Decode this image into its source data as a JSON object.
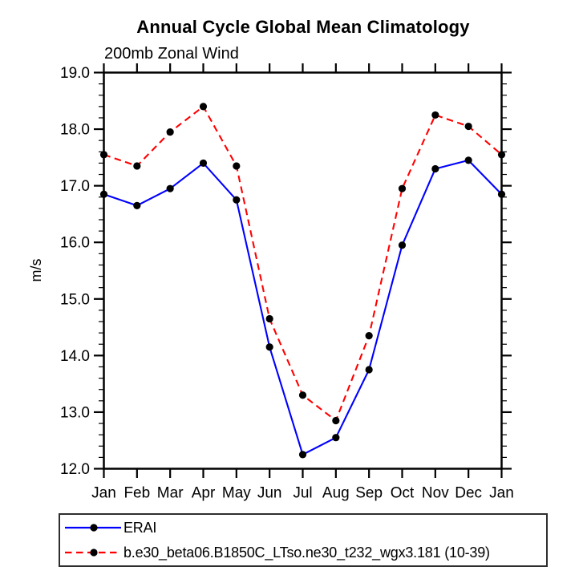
{
  "window": {
    "background": "#ffffff"
  },
  "chart_data": {
    "type": "line",
    "title": "Annual Cycle Global Mean Climatology",
    "subtitle": "200mb Zonal Wind",
    "xlabel": "",
    "ylabel": "m/s",
    "ylim": [
      12.0,
      19.0
    ],
    "ytick_interval": 1.0,
    "yminor_tick_interval": 0.2,
    "ytick_labels": [
      "12.0",
      "13.0",
      "14.0",
      "15.0",
      "16.0",
      "17.0",
      "18.0",
      "19.0"
    ],
    "categories": [
      "Jan",
      "Feb",
      "Mar",
      "Apr",
      "May",
      "Jun",
      "Jul",
      "Aug",
      "Sep",
      "Oct",
      "Nov",
      "Dec",
      "Jan"
    ],
    "grid": false,
    "frame_style": "closed-box-outward-ticks",
    "legend_position": "bottom-left-box",
    "series": [
      {
        "name": "ERAI",
        "line_color": "#0000ff",
        "line_style": "solid",
        "marker": "filled-circle",
        "marker_color": "#000000",
        "values": [
          16.85,
          16.65,
          16.95,
          17.4,
          16.75,
          14.15,
          12.25,
          12.55,
          13.75,
          15.95,
          17.3,
          17.45,
          16.85
        ]
      },
      {
        "name": "b.e30_beta06.B1850C_LTso.ne30_t232_wgx3.181 (10-39)",
        "line_color": "#ff0000",
        "line_style": "dashed",
        "marker": "filled-circle",
        "marker_color": "#000000",
        "values": [
          17.55,
          17.35,
          17.95,
          18.4,
          17.35,
          14.65,
          13.3,
          12.85,
          14.35,
          16.95,
          18.25,
          18.05,
          17.55
        ]
      }
    ],
    "axis_color": "#000000",
    "text_color": "#000000"
  }
}
